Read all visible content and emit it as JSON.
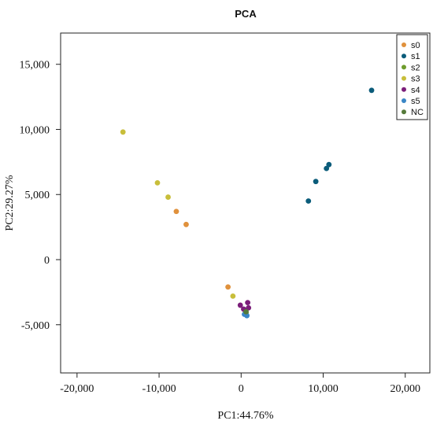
{
  "chart_data": {
    "type": "scatter",
    "title": "PCA",
    "xlabel": "PC1:44.76%",
    "ylabel": "PC2:29.27%",
    "xlim": [
      -22000,
      23000
    ],
    "ylim": [
      -8700,
      17400
    ],
    "xticks": [
      -20000,
      -10000,
      0,
      10000,
      20000
    ],
    "xtick_labels": [
      "-20,000",
      "-10,000",
      "0",
      "10,000",
      "20,000"
    ],
    "yticks": [
      -5000,
      0,
      5000,
      10000,
      15000
    ],
    "ytick_labels": [
      "-5,000",
      "0",
      "5,000",
      "10,000",
      "15,000"
    ],
    "grid": false,
    "legend_position": "top-right",
    "series": [
      {
        "name": "s0",
        "color": "#E0913C",
        "points": [
          [
            -7900,
            3700
          ],
          [
            -6700,
            2700
          ],
          [
            -1600,
            -2100
          ]
        ]
      },
      {
        "name": "s1",
        "color": "#0B5C7A",
        "points": [
          [
            8200,
            4500
          ],
          [
            9100,
            6000
          ],
          [
            10400,
            7000
          ],
          [
            10700,
            7300
          ],
          [
            15900,
            13000
          ]
        ]
      },
      {
        "name": "s2",
        "color": "#6E9C2C",
        "points": [
          [
            500,
            -3900
          ],
          [
            600,
            -4100
          ]
        ]
      },
      {
        "name": "s3",
        "color": "#C8BE3A",
        "points": [
          [
            -14400,
            9800
          ],
          [
            -10200,
            5900
          ],
          [
            -8900,
            4800
          ],
          [
            -1000,
            -2800
          ]
        ]
      },
      {
        "name": "s4",
        "color": "#7B1E7A",
        "points": [
          [
            -100,
            -3500
          ],
          [
            800,
            -3300
          ],
          [
            900,
            -3700
          ],
          [
            300,
            -3800
          ]
        ]
      },
      {
        "name": "s5",
        "color": "#3A86C6",
        "points": [
          [
            400,
            -4200
          ],
          [
            700,
            -4300
          ]
        ]
      },
      {
        "name": "NC",
        "color": "#557A3A",
        "points": [
          [
            600,
            -4000
          ]
        ]
      }
    ]
  }
}
